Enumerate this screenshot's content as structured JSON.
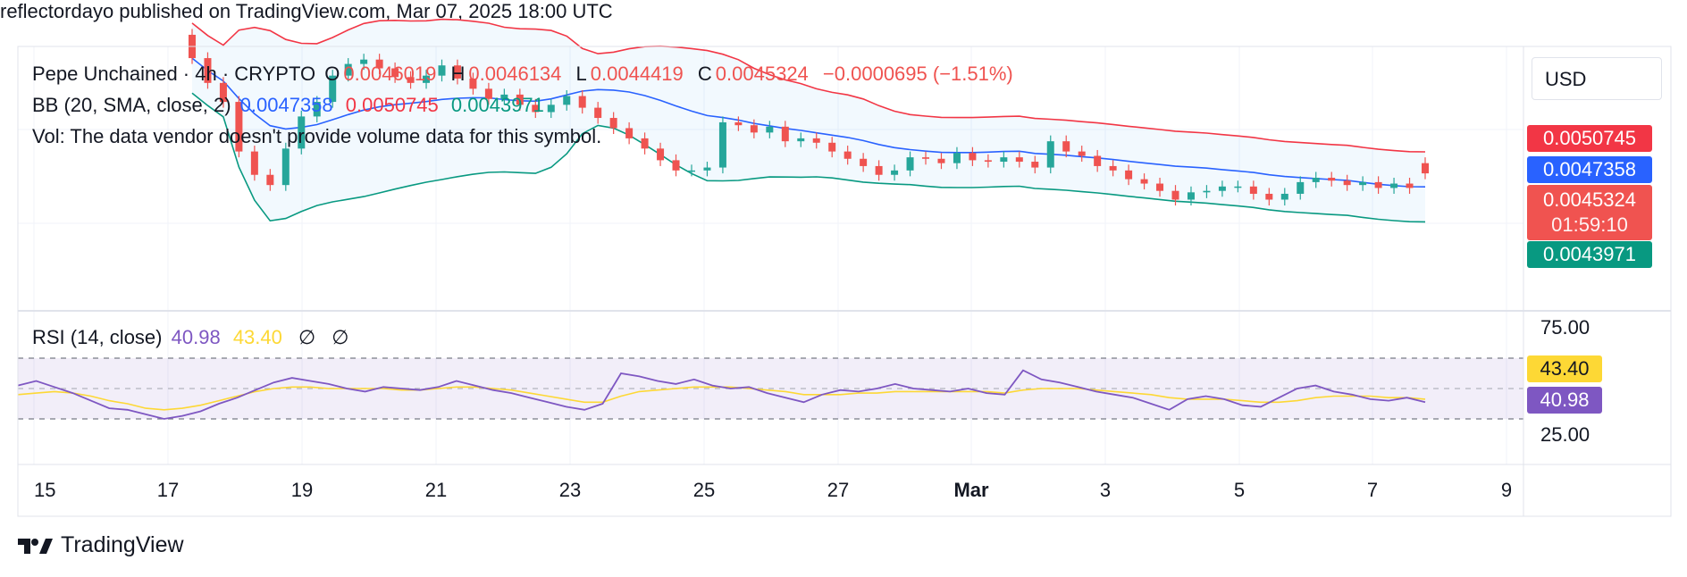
{
  "publisher": "reflectordayo published on TradingView.com, Mar 07, 2025 18:00 UTC",
  "brand": "TradingView",
  "currency": "USD",
  "legend": {
    "symbol": "Pepe Unchained · 4h · CRYPTO",
    "o_label": "O",
    "o_value": "0.0046019",
    "h_label": "H",
    "h_value": "0.0046134",
    "l_label": "L",
    "l_value": "0.0044419",
    "c_label": "C",
    "c_value": "0.0045324",
    "change": "−0.0000695 (−1.51%)",
    "bb_label": "BB (20, SMA, close, 2)",
    "bb_basis": "0.0047358",
    "bb_upper": "0.0050745",
    "bb_lower": "0.0043971",
    "vol_note": "Vol: The data vendor doesn't provide volume data for this symbol.",
    "rsi_label": "RSI (14, close)",
    "rsi_value": "40.98",
    "rsi_ma": "43.40",
    "rsi_na1": "∅",
    "rsi_na2": "∅"
  },
  "price_tags": {
    "upper": "0.0050745",
    "basis": "0.0047358",
    "last": "0.0045324",
    "countdown": "01:59:10",
    "lower": "0.0043971"
  },
  "rsi_axis": {
    "top": "75.00",
    "bottom": "25.00",
    "ma_tag": "43.40",
    "rsi_tag": "40.98"
  },
  "x_ticks": [
    "15",
    "17",
    "19",
    "21",
    "23",
    "25",
    "27",
    "Mar",
    "3",
    "5",
    "7",
    "9"
  ],
  "colors": {
    "up": "#26a69a",
    "down": "#ef5350",
    "bb_upper": "#f23645",
    "bb_basis": "#2962ff",
    "bb_lower": "#089981",
    "rsi": "#7e57c2",
    "rsi_ma": "#fdd835"
  },
  "chart_data": {
    "type": "candlestick",
    "interval": "4h",
    "x_range": [
      "2025-02-15",
      "2025-03-09"
    ],
    "price_ylim": [
      0.0036,
      0.0054
    ],
    "rsi_ylim": [
      0,
      100
    ],
    "rsi_bands": [
      70,
      30
    ],
    "candles": [
      {
        "o": 0.00548,
        "c": 0.00532
      },
      {
        "o": 0.00532,
        "c": 0.00515
      },
      {
        "o": 0.00515,
        "c": 0.00502
      },
      {
        "o": 0.00502,
        "c": 0.00468
      },
      {
        "o": 0.00468,
        "c": 0.00452
      },
      {
        "o": 0.00452,
        "c": 0.00445
      },
      {
        "o": 0.00445,
        "c": 0.0047
      },
      {
        "o": 0.0047,
        "c": 0.00492
      },
      {
        "o": 0.00492,
        "c": 0.00502
      },
      {
        "o": 0.00502,
        "c": 0.0052
      },
      {
        "o": 0.0052,
        "c": 0.00528
      },
      {
        "o": 0.00528,
        "c": 0.00531
      },
      {
        "o": 0.00531,
        "c": 0.00525
      },
      {
        "o": 0.00525,
        "c": 0.00519
      },
      {
        "o": 0.00519,
        "c": 0.00515
      },
      {
        "o": 0.00515,
        "c": 0.0052
      },
      {
        "o": 0.0052,
        "c": 0.00527
      },
      {
        "o": 0.00527,
        "c": 0.00518
      },
      {
        "o": 0.00518,
        "c": 0.00511
      },
      {
        "o": 0.00511,
        "c": 0.00504
      },
      {
        "o": 0.00504,
        "c": 0.00507
      },
      {
        "o": 0.00507,
        "c": 0.005
      },
      {
        "o": 0.005,
        "c": 0.00495
      },
      {
        "o": 0.00495,
        "c": 0.005
      },
      {
        "o": 0.005,
        "c": 0.00506
      },
      {
        "o": 0.00506,
        "c": 0.00498
      },
      {
        "o": 0.00498,
        "c": 0.00491
      },
      {
        "o": 0.00491,
        "c": 0.00484
      },
      {
        "o": 0.00484,
        "c": 0.00477
      },
      {
        "o": 0.00477,
        "c": 0.0047
      },
      {
        "o": 0.0047,
        "c": 0.00462
      },
      {
        "o": 0.00462,
        "c": 0.00455
      },
      {
        "o": 0.00455,
        "c": 0.00455
      },
      {
        "o": 0.00455,
        "c": 0.00457
      },
      {
        "o": 0.00457,
        "c": 0.00488
      },
      {
        "o": 0.00488,
        "c": 0.00486
      },
      {
        "o": 0.00486,
        "c": 0.00481
      },
      {
        "o": 0.00481,
        "c": 0.00485
      },
      {
        "o": 0.00485,
        "c": 0.00475
      },
      {
        "o": 0.00475,
        "c": 0.00477
      },
      {
        "o": 0.00477,
        "c": 0.00474
      },
      {
        "o": 0.00474,
        "c": 0.00468
      },
      {
        "o": 0.00468,
        "c": 0.00463
      },
      {
        "o": 0.00463,
        "c": 0.00458
      },
      {
        "o": 0.00458,
        "c": 0.00452
      },
      {
        "o": 0.00452,
        "c": 0.00455
      },
      {
        "o": 0.00455,
        "c": 0.00464
      },
      {
        "o": 0.00464,
        "c": 0.00463
      },
      {
        "o": 0.00463,
        "c": 0.0046
      },
      {
        "o": 0.0046,
        "c": 0.00467
      },
      {
        "o": 0.00467,
        "c": 0.00462
      },
      {
        "o": 0.00462,
        "c": 0.00461
      },
      {
        "o": 0.00461,
        "c": 0.00464
      },
      {
        "o": 0.00464,
        "c": 0.00461
      },
      {
        "o": 0.00461,
        "c": 0.00457
      },
      {
        "o": 0.00457,
        "c": 0.00475
      },
      {
        "o": 0.00475,
        "c": 0.00468
      },
      {
        "o": 0.00468,
        "c": 0.00465
      },
      {
        "o": 0.00465,
        "c": 0.00458
      },
      {
        "o": 0.00458,
        "c": 0.00455
      },
      {
        "o": 0.00455,
        "c": 0.00449
      },
      {
        "o": 0.00449,
        "c": 0.00446
      },
      {
        "o": 0.00446,
        "c": 0.00441
      },
      {
        "o": 0.00441,
        "c": 0.00435
      },
      {
        "o": 0.00435,
        "c": 0.0044
      },
      {
        "o": 0.0044,
        "c": 0.00441
      },
      {
        "o": 0.00441,
        "c": 0.00444
      },
      {
        "o": 0.00444,
        "c": 0.00444
      },
      {
        "o": 0.00444,
        "c": 0.00439
      },
      {
        "o": 0.00439,
        "c": 0.00435
      },
      {
        "o": 0.00435,
        "c": 0.00439
      },
      {
        "o": 0.00439,
        "c": 0.00447
      },
      {
        "o": 0.00447,
        "c": 0.0045
      },
      {
        "o": 0.0045,
        "c": 0.00448
      },
      {
        "o": 0.00448,
        "c": 0.00445
      },
      {
        "o": 0.00445,
        "c": 0.00447
      },
      {
        "o": 0.00447,
        "c": 0.00443
      },
      {
        "o": 0.00443,
        "c": 0.00446
      },
      {
        "o": 0.00446,
        "c": 0.00443
      },
      {
        "o": 0.0046,
        "c": 0.00453
      }
    ],
    "rsi": [
      52,
      55,
      51,
      47,
      42,
      37,
      36,
      33,
      30,
      32,
      35,
      40,
      44,
      49,
      54,
      57,
      55,
      53,
      50,
      48,
      51,
      50,
      49,
      51,
      55,
      52,
      49,
      47,
      44,
      41,
      38,
      36,
      40,
      60,
      58,
      55,
      53,
      56,
      52,
      50,
      51,
      47,
      44,
      41,
      46,
      49,
      48,
      50,
      53,
      50,
      49,
      48,
      50,
      47,
      46,
      62,
      56,
      54,
      51,
      48,
      46,
      44,
      40,
      36,
      43,
      45,
      43,
      39,
      38,
      44,
      50,
      52,
      48,
      46,
      43,
      42,
      44,
      41
    ],
    "rsi_ma": [
      46,
      47,
      48,
      47,
      45,
      42,
      40,
      37,
      36,
      37,
      39,
      42,
      45,
      48,
      50,
      51,
      51,
      50,
      50,
      50,
      50,
      49,
      49,
      50,
      51,
      51,
      50,
      49,
      47,
      45,
      43,
      41,
      41,
      45,
      48,
      49,
      50,
      51,
      51,
      51,
      50,
      49,
      48,
      46,
      46,
      46,
      47,
      47,
      48,
      48,
      48,
      48,
      48,
      48,
      47,
      49,
      50,
      50,
      50,
      49,
      48,
      47,
      46,
      44,
      43,
      43,
      43,
      42,
      41,
      41,
      42,
      44,
      45,
      45,
      45,
      44,
      44,
      43
    ]
  }
}
